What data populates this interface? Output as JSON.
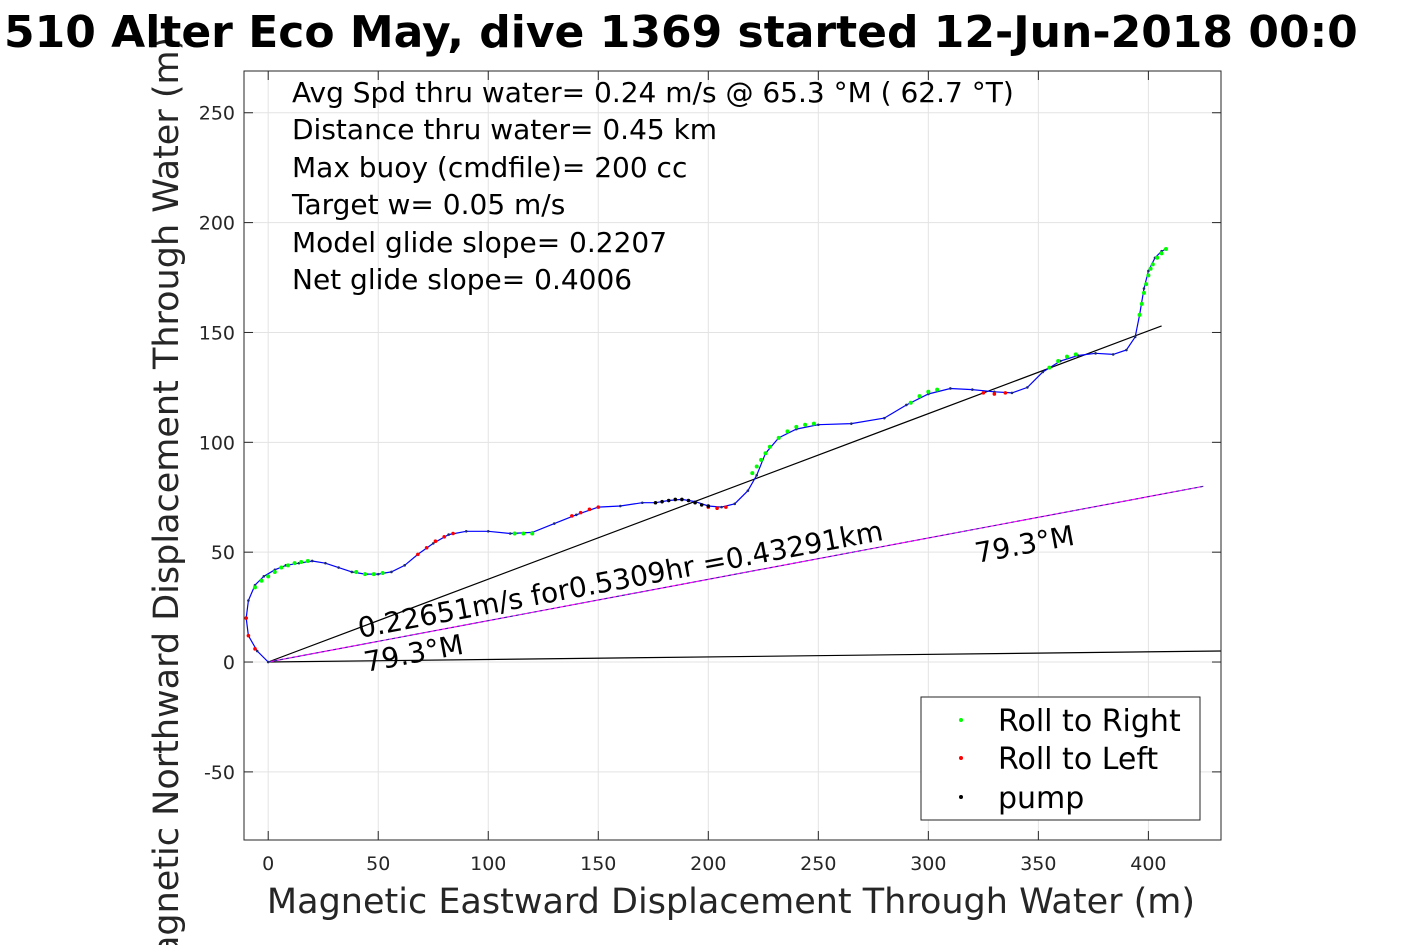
{
  "chart_data": {
    "type": "line",
    "title": "510 Alter Eco May, dive 1369 started 12-Jun-2018 00:0",
    "xlabel": "Magnetic Eastward Displacement Through Water (m)",
    "ylabel": "Magnetic Northward Displacement Through Water (m)",
    "xlim": [
      -11,
      433
    ],
    "ylim": [
      -81,
      269
    ],
    "xticks": [
      "0",
      "50",
      "100",
      "150",
      "200",
      "250",
      "300",
      "350",
      "400"
    ],
    "yticks": [
      "-50",
      "0",
      "50",
      "100",
      "150",
      "200",
      "250"
    ],
    "grid": true,
    "legend_position": "bottom-right",
    "legend": [
      {
        "label": "Roll to Right",
        "color": "#00ff00"
      },
      {
        "label": "Roll to Left",
        "color": "#ff0000"
      },
      {
        "label": "pump",
        "color": "#000000"
      }
    ],
    "annotations": [
      "Avg Spd thru water=  0.24 m/s @  65.3 °M ( 62.7 °T)",
      "Distance thru water=  0.45 km",
      "Max buoy (cmdfile)= 200 cc",
      "Target w= 0.05 m/s",
      "Model glide slope= 0.2207",
      "Net glide slope= 0.4006"
    ],
    "plot_labels": {
      "current_text": "0.22651m/s for0.5309hr =0.43291km",
      "heading_near": "79.3°M",
      "heading_far": "79.3°M"
    },
    "track": {
      "name": "displacement track",
      "color": "#0000ff",
      "x": [
        0,
        -5,
        -9,
        -10,
        -9,
        -6,
        -2,
        3,
        8,
        14,
        20,
        26,
        32,
        38,
        44,
        50,
        56,
        62,
        68,
        75,
        82,
        90,
        100,
        110,
        120,
        130,
        140,
        150,
        160,
        170,
        176,
        182,
        188,
        194,
        200,
        206,
        212,
        218,
        222,
        226,
        232,
        240,
        250,
        265,
        280,
        290,
        300,
        310,
        320,
        330,
        338,
        345,
        352,
        360,
        368,
        376,
        384,
        390,
        394,
        396,
        398,
        400,
        403,
        406,
        408
      ],
      "y": [
        0,
        5,
        12,
        20,
        28,
        35,
        39,
        42,
        44,
        45,
        46,
        45,
        43,
        41,
        40,
        40,
        41,
        44,
        49,
        54,
        58,
        59.5,
        59.5,
        58.5,
        59,
        63,
        67,
        70.5,
        71,
        72.5,
        72.5,
        73.5,
        74,
        73,
        71,
        70.5,
        72,
        78,
        85,
        95,
        102,
        106,
        108,
        108.5,
        111,
        117,
        122,
        124.5,
        124,
        123,
        122.5,
        125,
        132,
        137,
        139.5,
        140.5,
        140,
        142,
        148,
        158,
        170,
        178,
        184,
        187,
        188
      ]
    },
    "roll_right_points": {
      "x": [
        -6,
        -3,
        0,
        3,
        6,
        9,
        12,
        15,
        18,
        40,
        44,
        48,
        52,
        112,
        116,
        120,
        220,
        222,
        224,
        226,
        228,
        232,
        236,
        240,
        244,
        248,
        292,
        296,
        300,
        304,
        355,
        359,
        363,
        367,
        396,
        397,
        398,
        399,
        400,
        401,
        402,
        404,
        406,
        408
      ],
      "y": [
        34,
        37,
        39,
        41,
        43,
        44,
        45,
        45.5,
        46,
        41,
        40,
        40,
        40.5,
        58.5,
        58.5,
        58.5,
        86,
        89,
        92,
        95,
        98,
        102,
        105,
        107,
        108,
        108.5,
        118,
        121,
        123,
        124,
        134,
        137,
        139,
        140,
        158,
        163,
        168,
        172,
        176,
        179,
        181,
        184,
        186,
        188
      ]
    },
    "roll_left_points": {
      "x": [
        -10,
        -9,
        -6,
        68,
        72,
        76,
        80,
        84,
        138,
        142,
        146,
        150,
        200,
        204,
        208,
        325,
        330,
        335
      ],
      "y": [
        20,
        12,
        6,
        49,
        52,
        55,
        57,
        58.5,
        66.5,
        68,
        69.5,
        70.5,
        70.5,
        70,
        70.5,
        122.5,
        122,
        122.5
      ]
    },
    "pump_points": {
      "x": [
        176,
        179,
        182,
        185,
        188,
        191,
        194,
        197,
        200
      ],
      "y": [
        72.5,
        73,
        73.5,
        74,
        74,
        73.5,
        72.5,
        71.5,
        71
      ]
    },
    "net_line": {
      "name": "net glide line",
      "color": "#000000",
      "x": [
        0,
        406
      ],
      "y": [
        0,
        153
      ]
    },
    "current_line": {
      "name": "current line",
      "color": "#ff00ff",
      "x": [
        0,
        425
      ],
      "y": [
        0,
        80
      ]
    },
    "heading_line": {
      "name": "heading line",
      "color": "#000000",
      "x": [
        0,
        433
      ],
      "y": [
        0,
        5
      ]
    }
  }
}
